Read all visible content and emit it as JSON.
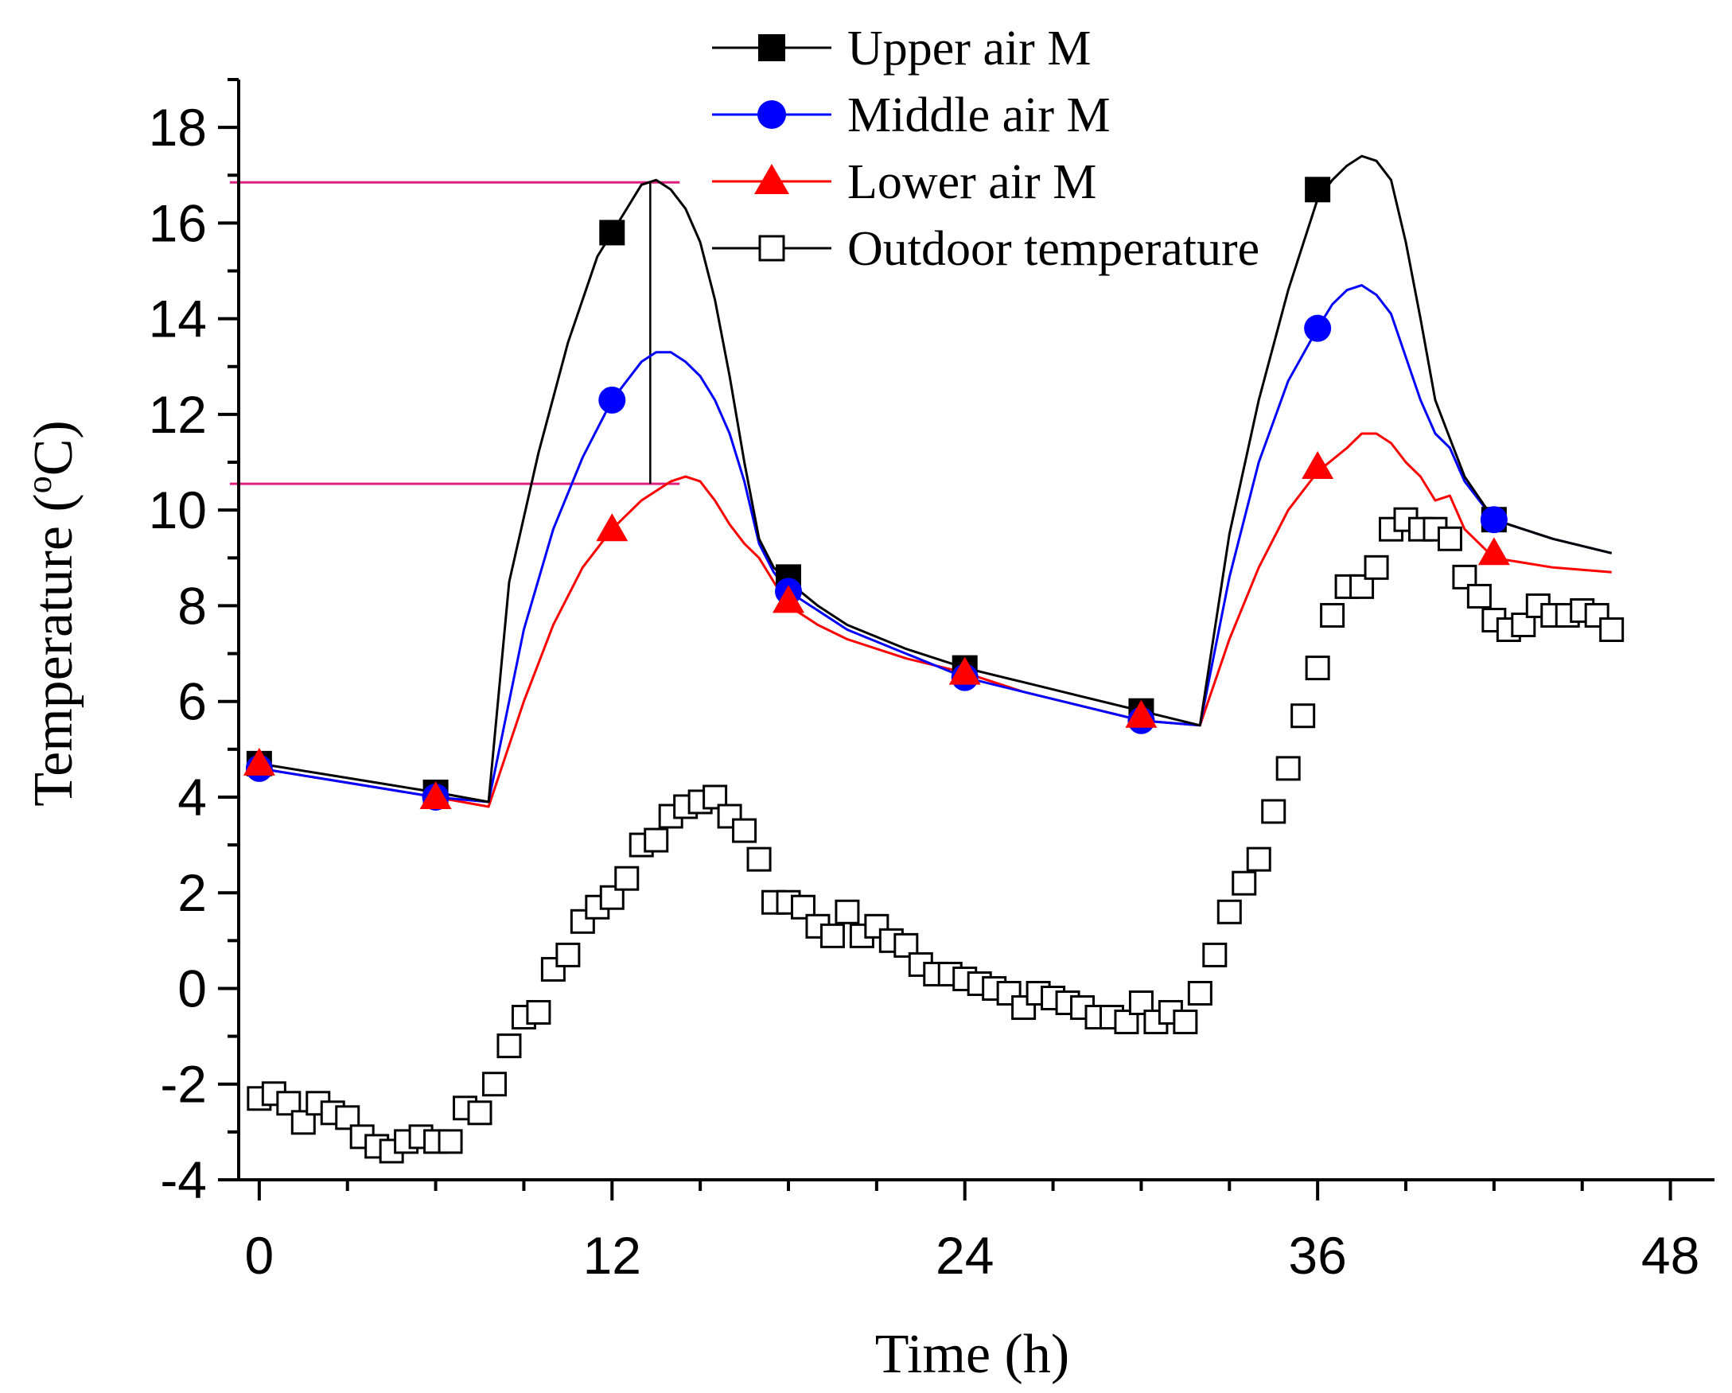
{
  "chart_data": {
    "type": "line",
    "title": "",
    "xlabel": "Time (h)",
    "ylabel_main": "Temperature (",
    "ylabel_sup": "o",
    "ylabel_end": "C)",
    "xlim": [
      -0.7,
      49.5
    ],
    "ylim": [
      -4,
      19
    ],
    "xticks": [
      0,
      12,
      24,
      36,
      48
    ],
    "xtick_labels": [
      "0",
      "12",
      "24",
      "36",
      "48"
    ],
    "x_minor_step": 3,
    "yticks": [
      -4,
      -2,
      0,
      2,
      4,
      6,
      8,
      10,
      12,
      14,
      16,
      18
    ],
    "ytick_labels": [
      "-4",
      "-2",
      "0",
      "2",
      "4",
      "6",
      "8",
      "10",
      "12",
      "14",
      "16",
      "18"
    ],
    "y_minor_step": 1,
    "grid": false,
    "legend_position": "top",
    "series": [
      {
        "name": "Upper air M",
        "marker": "square-filled",
        "color": "#000000",
        "x": [
          0,
          2,
          4,
          6,
          7.8,
          8.5,
          9.5,
          10.5,
          11.5,
          12.5,
          13,
          13.5,
          14,
          14.5,
          15,
          15.5,
          16,
          16.5,
          17,
          17.5,
          18,
          19,
          20,
          22,
          24,
          26,
          28,
          30,
          32,
          33,
          34,
          35,
          36,
          36.5,
          37,
          37.5,
          38,
          38.5,
          39,
          39.5,
          40,
          40.5,
          41,
          42,
          44,
          46
        ],
        "y": [
          4.7,
          4.5,
          4.3,
          4.1,
          3.9,
          8.5,
          11.2,
          13.5,
          15.3,
          16.3,
          16.8,
          16.9,
          16.7,
          16.3,
          15.6,
          14.4,
          12.8,
          11.0,
          9.4,
          8.8,
          8.5,
          8.0,
          7.6,
          7.1,
          6.7,
          6.4,
          6.1,
          5.8,
          5.5,
          9.5,
          12.3,
          14.6,
          16.5,
          16.9,
          17.2,
          17.4,
          17.3,
          16.9,
          15.6,
          14.0,
          12.3,
          11.5,
          10.7,
          9.8,
          9.4,
          9.1
        ],
        "marker_x": [
          0,
          6,
          12,
          18,
          24,
          30,
          36,
          42
        ],
        "marker_y": [
          4.7,
          4.1,
          15.8,
          8.6,
          6.7,
          5.8,
          16.7,
          9.8
        ]
      },
      {
        "name": "Middle air M",
        "marker": "circle-filled",
        "color": "#0000ff",
        "x": [
          0,
          2,
          4,
          6,
          7.8,
          9,
          10,
          11,
          12,
          13,
          13.5,
          14,
          14.5,
          15,
          15.5,
          16,
          16.5,
          17,
          17.5,
          18,
          19,
          20,
          22,
          24,
          26,
          28,
          30,
          32,
          33,
          34,
          35,
          36,
          36.5,
          37,
          37.5,
          38,
          38.5,
          39,
          39.5,
          40,
          40.5,
          41,
          42,
          44,
          46
        ],
        "y": [
          4.6,
          4.4,
          4.2,
          4.0,
          3.9,
          7.5,
          9.6,
          11.1,
          12.3,
          13.1,
          13.3,
          13.3,
          13.1,
          12.8,
          12.3,
          11.6,
          10.6,
          9.3,
          8.7,
          8.3,
          7.9,
          7.5,
          7.0,
          6.5,
          6.2,
          5.9,
          5.6,
          5.5,
          8.6,
          11.0,
          12.7,
          13.8,
          14.3,
          14.6,
          14.7,
          14.5,
          14.1,
          13.2,
          12.3,
          11.6,
          11.3,
          10.6,
          9.8,
          9.4,
          9.1
        ],
        "marker_x": [
          0,
          6,
          12,
          18,
          24,
          30,
          36,
          42
        ],
        "marker_y": [
          4.6,
          4.0,
          12.3,
          8.3,
          6.5,
          5.6,
          13.8,
          9.8
        ]
      },
      {
        "name": "Lower air M",
        "marker": "triangle-filled",
        "color": "#ff0000",
        "x": [
          0,
          2,
          4,
          6,
          7.8,
          9,
          10,
          11,
          12,
          13,
          14,
          14.5,
          15,
          15.5,
          16,
          16.5,
          17,
          17.5,
          18,
          19,
          20,
          22,
          24,
          26,
          28,
          30,
          32,
          33,
          34,
          35,
          36,
          37,
          37.5,
          38,
          38.5,
          39,
          39.5,
          40,
          40.5,
          41,
          42,
          44,
          46
        ],
        "y": [
          4.6,
          4.4,
          4.2,
          4.0,
          3.8,
          6.0,
          7.6,
          8.8,
          9.6,
          10.2,
          10.6,
          10.7,
          10.6,
          10.2,
          9.7,
          9.3,
          9.0,
          8.5,
          8.0,
          7.6,
          7.3,
          6.9,
          6.6,
          6.2,
          5.9,
          5.6,
          5.5,
          7.3,
          8.8,
          10.0,
          10.8,
          11.3,
          11.6,
          11.6,
          11.4,
          11.0,
          10.7,
          10.2,
          10.3,
          9.6,
          9.0,
          8.8,
          8.7
        ],
        "marker_x": [
          0,
          6,
          12,
          18,
          24,
          30,
          36,
          42
        ],
        "marker_y": [
          4.7,
          4.0,
          9.6,
          8.1,
          6.6,
          5.7,
          10.9,
          9.1
        ]
      },
      {
        "name": "Outdoor temperature",
        "marker": "square-open",
        "color": "#000000",
        "x": [
          0,
          0.5,
          1,
          1.5,
          2,
          2.5,
          3,
          3.5,
          4,
          4.5,
          5,
          5.5,
          6,
          6.5,
          7,
          7.5,
          8,
          8.5,
          9,
          9.5,
          10,
          10.5,
          11,
          11.5,
          12,
          12.5,
          13,
          13.5,
          14,
          14.5,
          15,
          15.5,
          16,
          16.5,
          17,
          17.5,
          18,
          18.5,
          19,
          19.5,
          20,
          20.5,
          21,
          21.5,
          22,
          22.5,
          23,
          23.5,
          24,
          24.5,
          25,
          25.5,
          26,
          26.5,
          27,
          27.5,
          28,
          28.5,
          29,
          29.5,
          30,
          30.5,
          31,
          31.5,
          32,
          32.5,
          33,
          33.5,
          34,
          34.5,
          35,
          35.5,
          36,
          36.5,
          37,
          37.5,
          38,
          38.5,
          39,
          39.5,
          40,
          40.5,
          41,
          41.5,
          42,
          42.5,
          43,
          43.5,
          44,
          44.5,
          45,
          45.5,
          46
        ],
        "y": [
          -2.3,
          -2.2,
          -2.4,
          -2.8,
          -2.4,
          -2.6,
          -2.7,
          -3.1,
          -3.3,
          -3.4,
          -3.2,
          -3.1,
          -3.2,
          -3.2,
          -2.5,
          -2.6,
          -2.0,
          -1.2,
          -0.6,
          -0.5,
          0.4,
          0.7,
          1.4,
          1.7,
          1.9,
          2.3,
          3.0,
          3.1,
          3.6,
          3.8,
          3.9,
          4.0,
          3.6,
          3.3,
          2.7,
          1.8,
          1.8,
          1.7,
          1.3,
          1.1,
          1.6,
          1.1,
          1.3,
          1.0,
          0.9,
          0.5,
          0.3,
          0.3,
          0.2,
          0.1,
          0.0,
          -0.1,
          -0.4,
          -0.1,
          -0.2,
          -0.3,
          -0.4,
          -0.6,
          -0.6,
          -0.7,
          -0.3,
          -0.7,
          -0.5,
          -0.7,
          -0.1,
          0.7,
          1.6,
          2.2,
          2.7,
          3.7,
          4.6,
          5.7,
          6.7,
          7.8,
          8.4,
          8.4,
          8.8,
          9.6,
          9.8,
          9.6,
          9.6,
          9.4,
          8.6,
          8.2,
          7.7,
          7.5,
          7.6,
          8.0,
          7.8,
          7.8,
          7.9,
          7.8,
          7.5
        ]
      }
    ],
    "annotations": {
      "hline_color": "#e0207f",
      "hline_y": [
        16.85,
        10.55
      ],
      "hline_x_range": [
        -1.0,
        14.3
      ],
      "vline_x": 13.3,
      "vline_y_range": [
        10.55,
        16.85
      ]
    }
  }
}
